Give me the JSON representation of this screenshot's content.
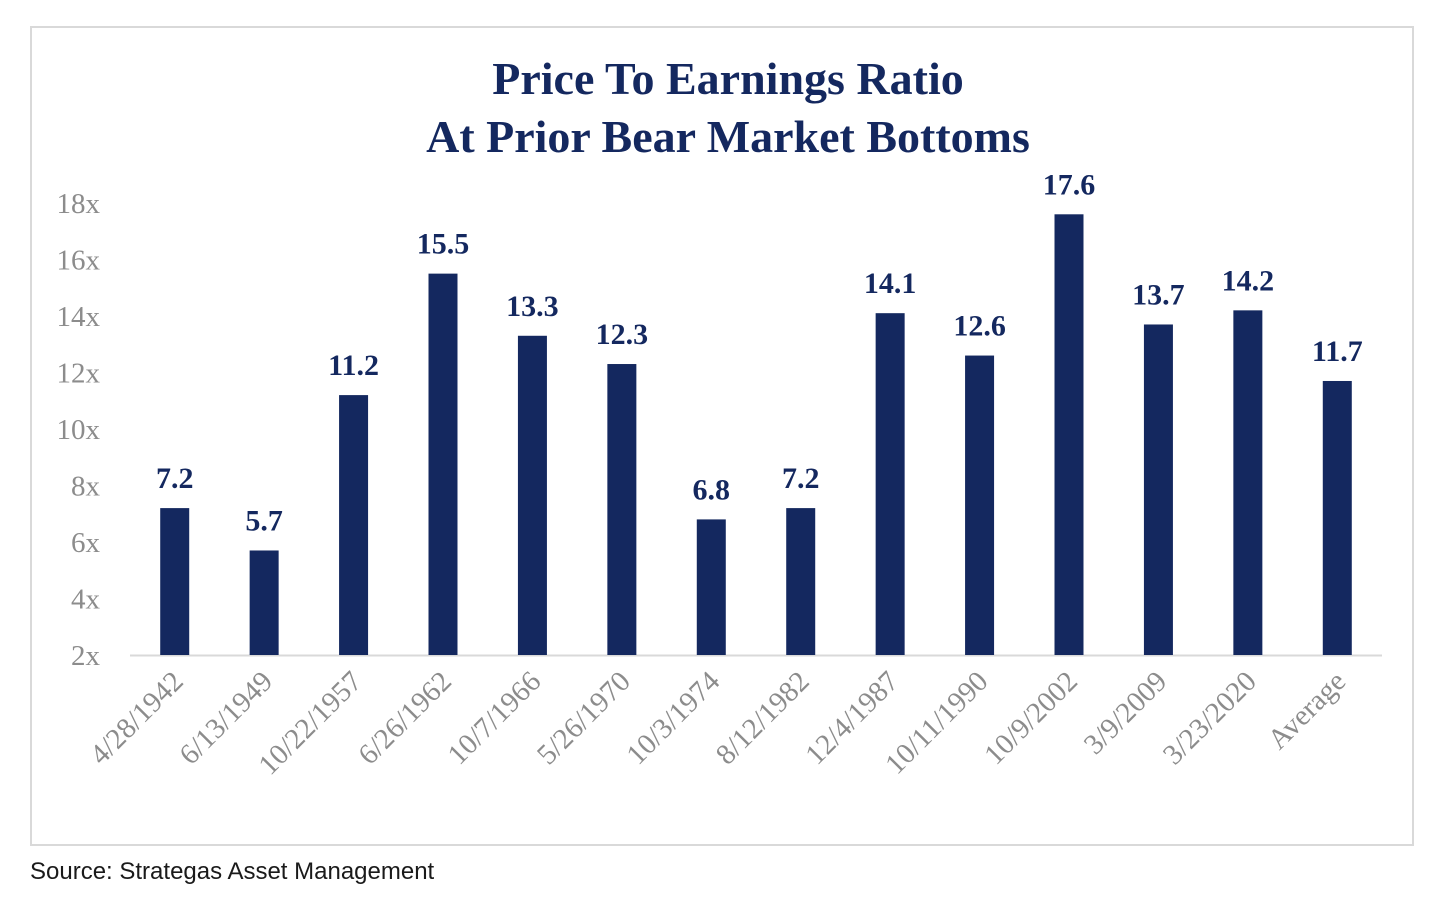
{
  "chart_data": {
    "type": "bar",
    "title_line1": "Price To Earnings Ratio",
    "title_line2": "At Prior Bear Market Bottoms",
    "categories": [
      "4/28/1942",
      "6/13/1949",
      "10/22/1957",
      "6/26/1962",
      "10/7/1966",
      "5/26/1970",
      "10/3/1974",
      "8/12/1982",
      "12/4/1987",
      "10/11/1990",
      "10/9/2002",
      "3/9/2009",
      "3/23/2020",
      "Average"
    ],
    "values": [
      7.2,
      5.7,
      11.2,
      15.5,
      13.3,
      12.3,
      6.8,
      7.2,
      14.1,
      12.6,
      17.6,
      13.7,
      14.2,
      11.7
    ],
    "data_labels": [
      "7.2",
      "5.7",
      "11.2",
      "15.5",
      "13.3",
      "12.3",
      "6.8",
      "7.2",
      "14.1",
      "12.6",
      "17.6",
      "13.7",
      "14.2",
      "11.7"
    ],
    "y_ticks": [
      2,
      4,
      6,
      8,
      10,
      12,
      14,
      16,
      18
    ],
    "y_tick_labels": [
      "2x",
      "4x",
      "6x",
      "8x",
      "10x",
      "12x",
      "14x",
      "16x",
      "18x"
    ],
    "ylim": [
      2,
      18
    ],
    "grid": false,
    "legend": "none",
    "bar_color": "#14285f",
    "label_color": "#14285f",
    "tick_color": "#8c8c8c"
  },
  "source": "Source: Strategas Asset Management"
}
